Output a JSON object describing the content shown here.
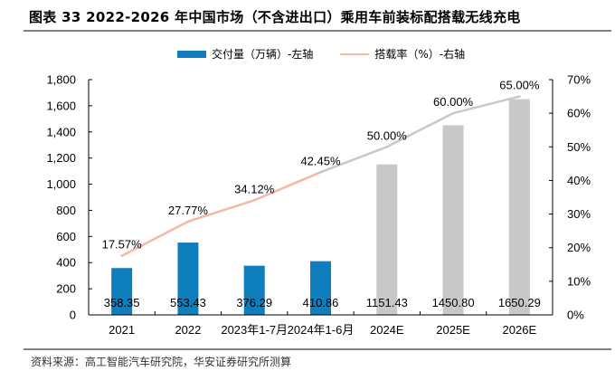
{
  "title": "图表 33 2022-2026 年中国市场（不含进出口）乘用车前装标配搭载无线充电",
  "source": "资料来源：高工智能汽车研究院，华安证券研究所测算",
  "colors": {
    "bar_actual": "#0e7ebd",
    "bar_forecast": "#c8c8c8",
    "line_actual": "#f4b8a4",
    "line_forecast": "#c8c8c8"
  },
  "chart_data": {
    "type": "bar",
    "title": "图表 33 2022-2026 年中国市场（不含进出口）乘用车前装标配搭载无线充电",
    "categories": [
      "2021",
      "2022",
      "2023年1-7月",
      "2024年1-6月",
      "2024E",
      "2025E",
      "2026E"
    ],
    "forecast_flags": [
      false,
      false,
      false,
      false,
      true,
      true,
      true
    ],
    "series": [
      {
        "name": "交付量（万辆）-左轴",
        "type": "bar",
        "axis": "left",
        "values": [
          358.35,
          553.43,
          376.29,
          410.86,
          1151.43,
          1450.8,
          1650.29
        ],
        "labels": [
          "358.35",
          "553.43",
          "376.29",
          "410.86",
          "1151.43",
          "1450.80",
          "1650.29"
        ]
      },
      {
        "name": "搭载率（%）-右轴",
        "type": "line",
        "axis": "right",
        "values": [
          17.57,
          27.77,
          34.12,
          42.45,
          50.0,
          60.0,
          65.0
        ],
        "labels": [
          "17.57%",
          "27.77%",
          "34.12%",
          "42.45%",
          "50.00%",
          "60.00%",
          "65.00%"
        ]
      }
    ],
    "y_left": {
      "min": 0,
      "max": 1800,
      "step": 200,
      "ticks": [
        "0",
        "200",
        "400",
        "600",
        "800",
        "1,000",
        "1,200",
        "1,400",
        "1,600",
        "1,800"
      ]
    },
    "y_right": {
      "min": 0,
      "max": 70,
      "step": 10,
      "ticks": [
        "0%",
        "10%",
        "20%",
        "30%",
        "40%",
        "50%",
        "60%",
        "70%"
      ]
    },
    "xlabel": "",
    "ylabel": "",
    "grid": false,
    "legend": "top-center"
  }
}
